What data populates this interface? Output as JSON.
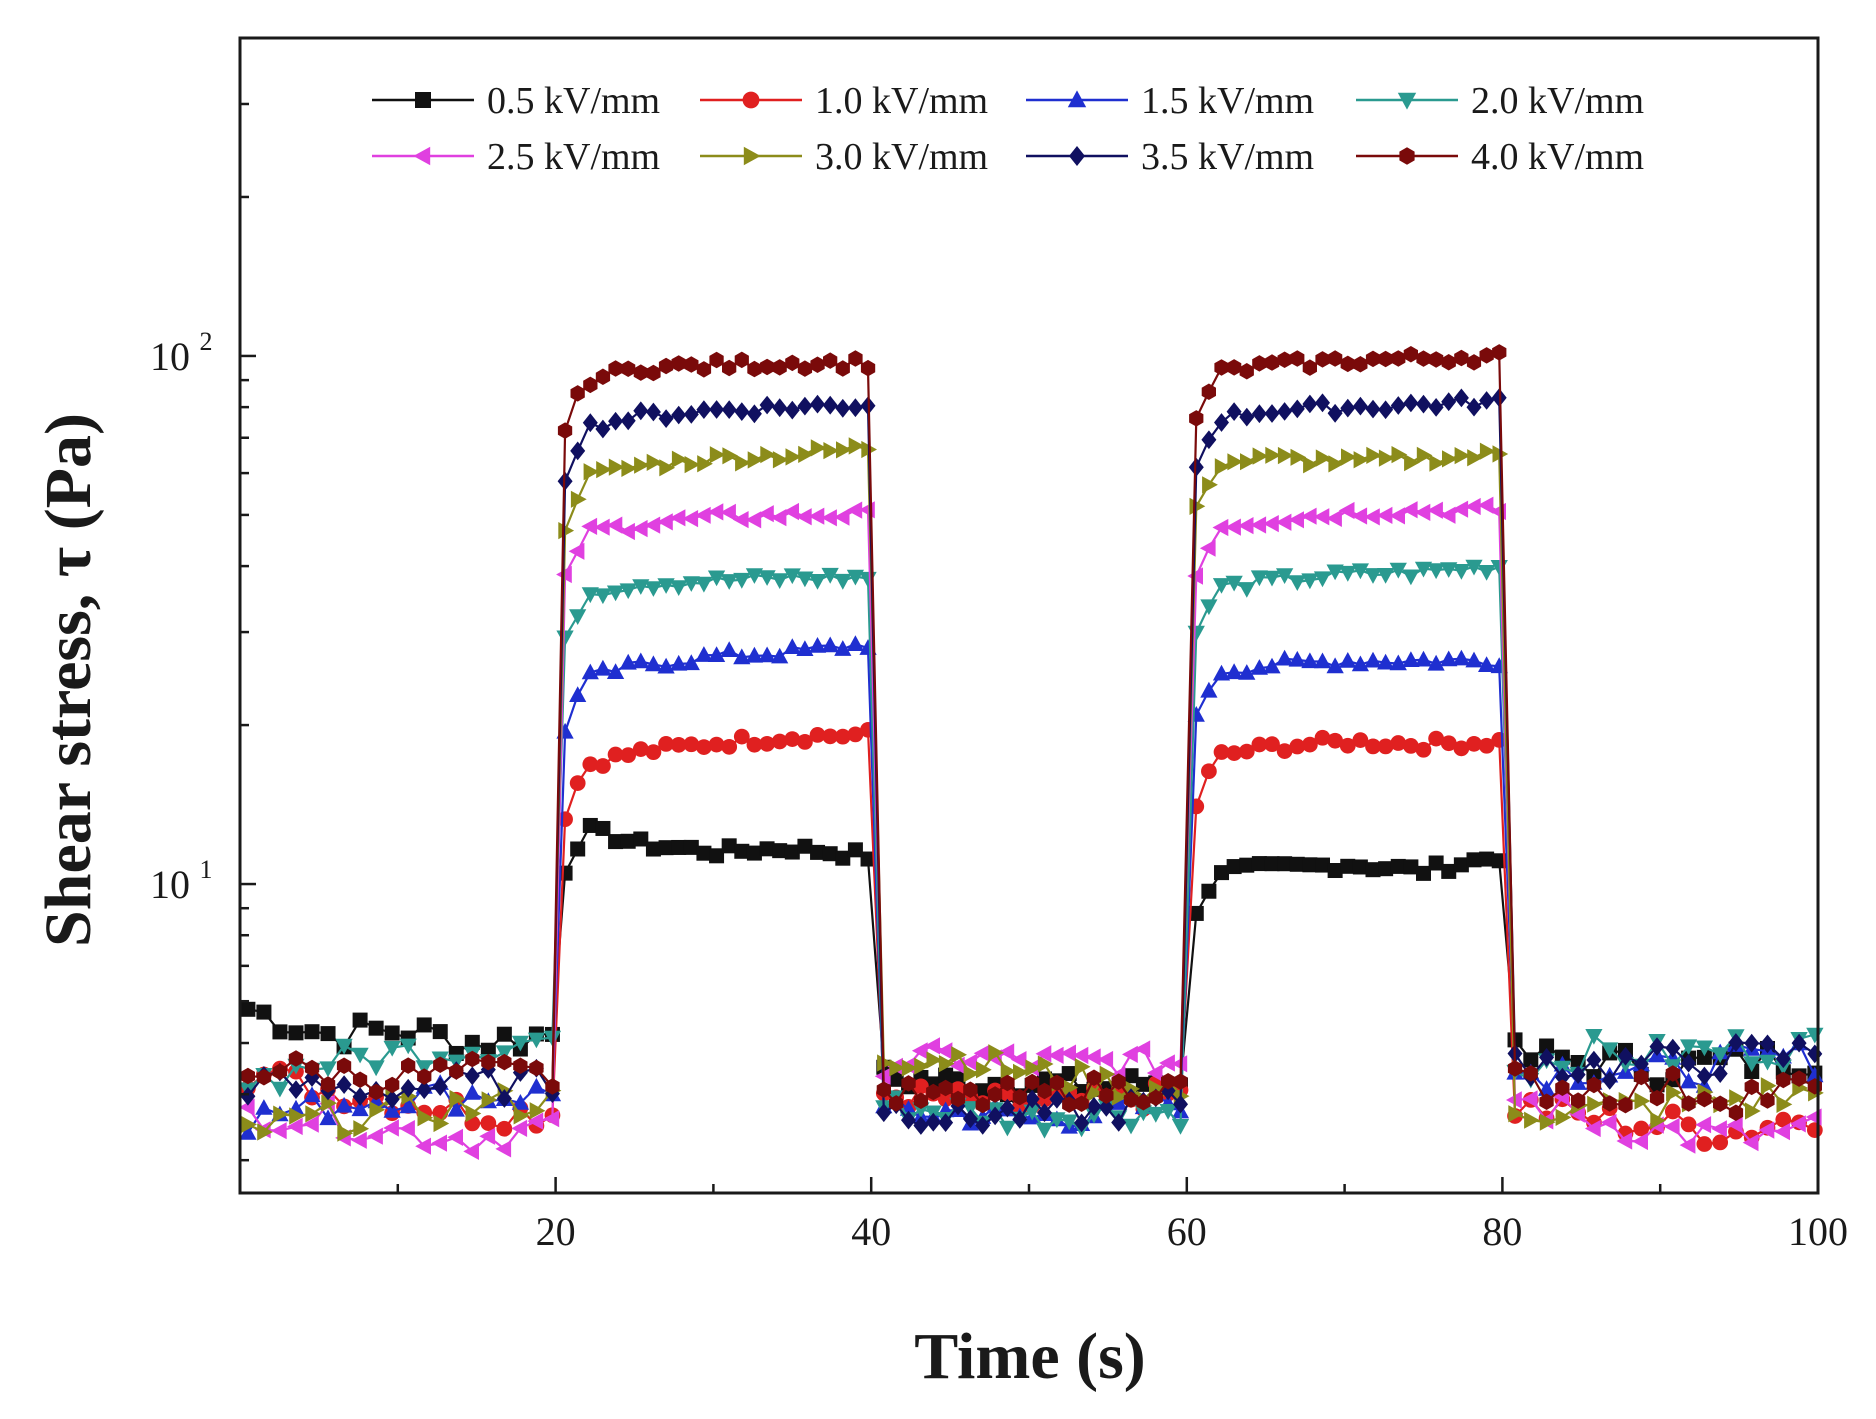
{
  "chart_data": {
    "type": "line",
    "title": "",
    "xlabel": "Time (s)",
    "ylabel": "Shear stress, τ (Pa)",
    "yscale": "log",
    "xlim": [
      0,
      100
    ],
    "ylim": [
      2.6,
      400
    ],
    "grid": false,
    "legend_position": "top",
    "x_ticks": [
      {
        "value": 20,
        "label": "20"
      },
      {
        "value": 40,
        "label": "40"
      },
      {
        "value": 60,
        "label": "60"
      },
      {
        "value": 80,
        "label": "80"
      },
      {
        "value": 100,
        "label": "100"
      }
    ],
    "y_ticks": [
      {
        "value": 10,
        "base": "10",
        "exp": "1"
      },
      {
        "value": 100,
        "base": "10",
        "exp": "2"
      }
    ],
    "series": [
      {
        "name": "0.5 kV/mm",
        "color": "#111111",
        "marker": "square",
        "on": [
          13.0,
          11.9,
          11.5,
          11.7,
          11.3
        ],
        "on2": [
          10.6,
          10.7,
          10.9,
          10.6,
          11.3
        ],
        "off": [
          5.8,
          5.2,
          5.3,
          5.0,
          5.2
        ],
        "off2": [
          4.3,
          4.2,
          4.2,
          4.1,
          4.3
        ],
        "off3": [
          4.7,
          4.6,
          4.5,
          4.6,
          4.7
        ]
      },
      {
        "name": "1.0 kV/mm",
        "color": "#e02020",
        "marker": "circle",
        "on": [
          16.5,
          17.8,
          18.5,
          19.0,
          19.2
        ],
        "on2": [
          17.2,
          18.2,
          18.6,
          18.4,
          18.6
        ],
        "off": [
          4.4,
          4.1,
          3.9,
          3.7,
          3.7
        ],
        "off2": [
          4.0,
          3.9,
          3.8,
          3.9,
          4.0
        ],
        "off3": [
          3.8,
          3.6,
          3.5,
          3.4,
          3.7
        ]
      },
      {
        "name": "1.5 kV/mm",
        "color": "#1f2fd0",
        "marker": "triangle-up",
        "on": [
          24.0,
          26.0,
          27.0,
          27.5,
          28.5
        ],
        "on2": [
          25.0,
          26.0,
          26.5,
          26.5,
          26.5
        ],
        "off": [
          3.6,
          3.8,
          4.0,
          4.0,
          4.0
        ],
        "off2": [
          3.7,
          3.7,
          3.6,
          3.7,
          3.9
        ],
        "off3": [
          4.4,
          4.5,
          4.4,
          4.6,
          4.7
        ]
      },
      {
        "name": "2.0 kV/mm",
        "color": "#2a9a90",
        "marker": "triangle-down",
        "on": [
          35.0,
          37.0,
          37.5,
          38.0,
          38.0
        ],
        "on2": [
          36.0,
          37.5,
          38.5,
          39.0,
          40.0
        ],
        "off": [
          4.2,
          4.6,
          4.8,
          4.9,
          5.1
        ],
        "off2": [
          3.8,
          3.7,
          3.6,
          3.7,
          3.7
        ],
        "off3": [
          4.5,
          4.8,
          4.7,
          4.9,
          4.9
        ]
      },
      {
        "name": "2.5 kV/mm",
        "color": "#e040e0",
        "marker": "triangle-left",
        "on": [
          46.0,
          48.0,
          49.5,
          50.0,
          50.0
        ],
        "on2": [
          47.0,
          49.0,
          50.5,
          51.0,
          51.0
        ],
        "off": [
          3.7,
          3.6,
          3.4,
          3.3,
          3.5
        ],
        "off2": [
          4.6,
          4.7,
          4.6,
          4.6,
          4.6
        ],
        "off3": [
          3.9,
          3.6,
          3.4,
          3.3,
          3.4
        ]
      },
      {
        "name": "3.0 kV/mm",
        "color": "#8c8c1a",
        "marker": "triangle-right",
        "on": [
          58.0,
          62.0,
          64.0,
          65.0,
          67.0
        ],
        "on2": [
          62.0,
          64.0,
          63.0,
          64.0,
          65.0
        ],
        "off": [
          3.4,
          3.6,
          3.7,
          3.8,
          3.9
        ],
        "off2": [
          4.7,
          4.7,
          4.4,
          4.2,
          4.0
        ],
        "off3": [
          3.8,
          3.7,
          3.8,
          3.9,
          4.0
        ]
      },
      {
        "name": "3.5 kV/mm",
        "color": "#101060",
        "marker": "diamond",
        "on": [
          72.0,
          77.0,
          79.0,
          80.0,
          81.0
        ],
        "on2": [
          75.0,
          79.0,
          80.0,
          81.0,
          82.0
        ],
        "off": [
          4.2,
          4.1,
          4.1,
          4.2,
          4.2
        ],
        "off2": [
          3.8,
          3.6,
          3.7,
          3.7,
          3.9
        ],
        "off3": [
          4.7,
          4.5,
          4.6,
          4.7,
          4.8
        ]
      },
      {
        "name": "4.0 kV/mm",
        "color": "#7a0a0a",
        "marker": "hexagon",
        "on": [
          88.0,
          95.0,
          96.0,
          97.0,
          97.0
        ],
        "on2": [
          92.0,
          96.0,
          98.0,
          99.0,
          100.0
        ],
        "off": [
          4.5,
          4.4,
          4.3,
          4.4,
          4.3
        ],
        "off2": [
          4.0,
          3.9,
          4.0,
          4.1,
          4.1
        ],
        "off3": [
          4.2,
          4.1,
          4.1,
          4.0,
          4.1
        ]
      }
    ]
  }
}
